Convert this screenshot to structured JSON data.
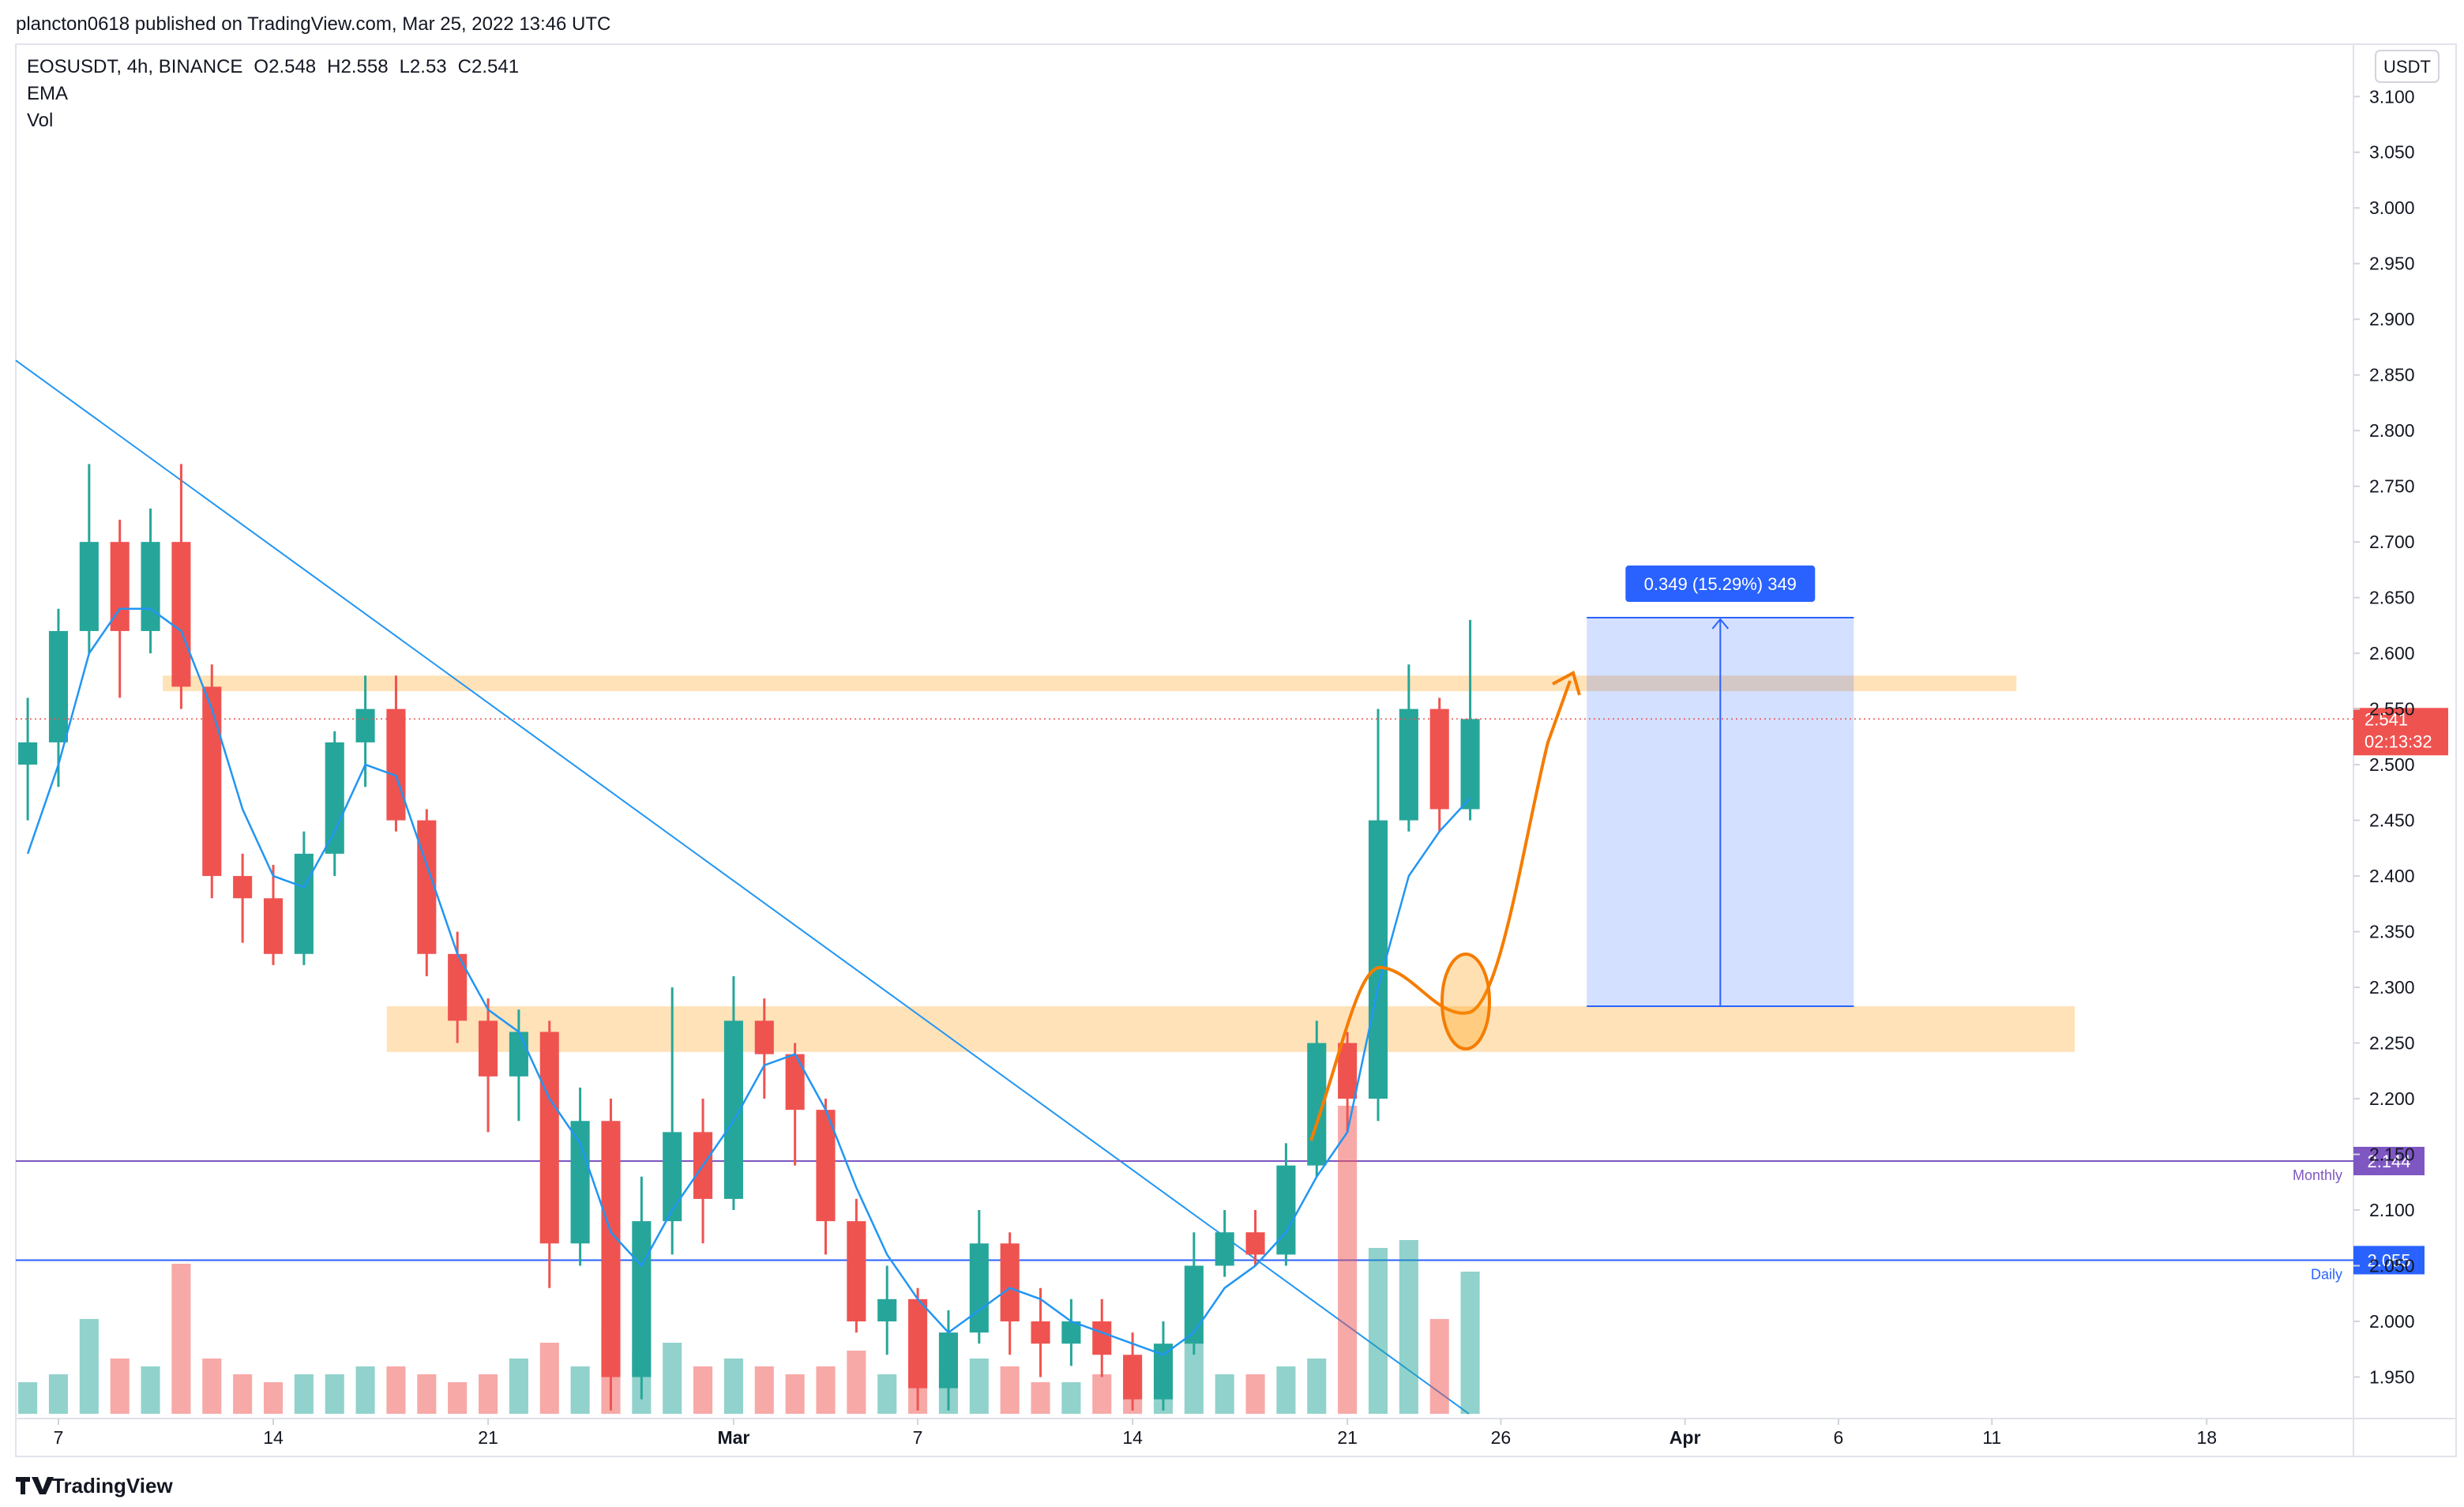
{
  "header": {
    "publisher": "plancton0618 published on TradingView.com, Mar 25, 2022 13:46 UTC"
  },
  "footer": {
    "brand": "TradingView"
  },
  "chart_data": {
    "type": "candlestick",
    "symbol": "EOSUSDT, 4h, BINANCE",
    "ohlc": [
      {
        "label": "O",
        "value": 2.548
      },
      {
        "label": "H",
        "value": 2.558
      },
      {
        "label": "L",
        "value": 2.53
      },
      {
        "label": "C",
        "value": 2.541
      }
    ],
    "currency": "USDT",
    "countdown": "02:13:32",
    "x": [
      5,
      6,
      7,
      8,
      9,
      10,
      11,
      12,
      13,
      14,
      15,
      16,
      17,
      18,
      19,
      20,
      21,
      22,
      23,
      24,
      25,
      26,
      27,
      28,
      29,
      30,
      31,
      32,
      33,
      34,
      35,
      36,
      37,
      38,
      39,
      40,
      41,
      42,
      43,
      44,
      45,
      46,
      47,
      48,
      49,
      50,
      51,
      52
    ],
    "open": [
      2.5,
      2.52,
      2.62,
      2.7,
      2.62,
      2.7,
      2.57,
      2.4,
      2.38,
      2.33,
      2.42,
      2.52,
      2.55,
      2.45,
      2.33,
      2.27,
      2.22,
      2.26,
      2.07,
      2.18,
      1.95,
      2.09,
      2.17,
      2.11,
      2.27,
      2.24,
      2.19,
      2.09,
      2.0,
      2.02,
      1.94,
      1.99,
      2.07,
      2.0,
      1.98,
      2.0,
      1.97,
      1.93,
      1.98,
      2.05,
      2.08,
      2.06,
      2.14,
      2.25,
      2.2,
      2.45,
      2.55,
      2.46
    ],
    "high": [
      2.56,
      2.64,
      2.77,
      2.72,
      2.73,
      2.77,
      2.59,
      2.42,
      2.41,
      2.44,
      2.53,
      2.58,
      2.58,
      2.46,
      2.35,
      2.29,
      2.28,
      2.27,
      2.21,
      2.2,
      2.13,
      2.3,
      2.2,
      2.31,
      2.29,
      2.25,
      2.2,
      2.11,
      2.05,
      2.03,
      2.01,
      2.1,
      2.08,
      2.03,
      2.02,
      2.02,
      1.99,
      2.0,
      2.08,
      2.1,
      2.1,
      2.16,
      2.27,
      2.26,
      2.55,
      2.59,
      2.56,
      2.63
    ],
    "low": [
      2.45,
      2.48,
      2.6,
      2.56,
      2.6,
      2.55,
      2.38,
      2.34,
      2.32,
      2.32,
      2.4,
      2.48,
      2.44,
      2.31,
      2.25,
      2.17,
      2.18,
      2.03,
      2.05,
      1.92,
      1.93,
      2.06,
      2.07,
      2.1,
      2.2,
      2.14,
      2.06,
      1.99,
      1.97,
      1.92,
      1.92,
      1.98,
      1.97,
      1.95,
      1.96,
      1.95,
      1.92,
      1.92,
      1.97,
      2.04,
      2.05,
      2.05,
      2.13,
      2.17,
      2.18,
      2.44,
      2.44,
      2.45
    ],
    "close": [
      2.52,
      2.62,
      2.7,
      2.62,
      2.7,
      2.57,
      2.4,
      2.38,
      2.33,
      2.42,
      2.52,
      2.55,
      2.45,
      2.33,
      2.27,
      2.22,
      2.26,
      2.07,
      2.18,
      1.95,
      2.09,
      2.17,
      2.11,
      2.27,
      2.24,
      2.19,
      2.09,
      2.0,
      2.02,
      1.94,
      1.99,
      2.07,
      2.0,
      1.98,
      2.0,
      1.97,
      1.93,
      1.98,
      2.05,
      2.08,
      2.06,
      2.14,
      2.25,
      2.2,
      2.45,
      2.55,
      2.46,
      2.541
    ],
    "up_color": "#26a69a",
    "down_color": "#ef5350",
    "series": [
      {
        "name": "EMA",
        "color": "#2196f3",
        "values": [
          2.42,
          2.5,
          2.6,
          2.64,
          2.64,
          2.62,
          2.55,
          2.46,
          2.4,
          2.39,
          2.44,
          2.5,
          2.49,
          2.41,
          2.33,
          2.28,
          2.26,
          2.2,
          2.16,
          2.08,
          2.05,
          2.1,
          2.14,
          2.18,
          2.23,
          2.24,
          2.19,
          2.12,
          2.06,
          2.02,
          1.99,
          2.01,
          2.03,
          2.02,
          2.0,
          1.99,
          1.98,
          1.97,
          1.99,
          2.03,
          2.05,
          2.08,
          2.13,
          2.17,
          2.3,
          2.4,
          2.44,
          2.47
        ]
      }
    ],
    "volume": {
      "name": "Vol",
      "values": [
        20,
        25,
        60,
        35,
        30,
        95,
        35,
        25,
        20,
        25,
        25,
        30,
        30,
        25,
        20,
        25,
        35,
        45,
        30,
        55,
        40,
        45,
        30,
        35,
        30,
        25,
        30,
        40,
        25,
        35,
        25,
        35,
        30,
        20,
        20,
        25,
        30,
        25,
        45,
        25,
        25,
        30,
        35,
        195,
        105,
        110,
        60,
        90
      ]
    },
    "levels": [
      {
        "name": "Monthly",
        "value": 2.144,
        "color": "#7e57c2"
      },
      {
        "name": "Daily",
        "value": 2.055,
        "color": "#2962ff"
      }
    ],
    "zones": [
      {
        "x": [
          9.4,
          69.8
        ],
        "y": [
          2.566,
          2.58
        ]
      },
      {
        "x": [
          16.7,
          71.7
        ],
        "y": [
          2.242,
          2.283
        ]
      }
    ],
    "trendline": {
      "x": [
        4.611,
        51.96
      ],
      "y": [
        2.863,
        1.917
      ],
      "color": "#2196f3"
    },
    "measure": {
      "x": [
        55.8,
        64.5
      ],
      "y": [
        2.283,
        2.632
      ],
      "label": "0.349 (15.29%) 349"
    },
    "xlim": [
      4.611,
      80.78
    ],
    "ylim": [
      1.917,
      3.147
    ],
    "xticks": [
      {
        "value": 6,
        "label": "7"
      },
      {
        "value": 13,
        "label": "14"
      },
      {
        "value": 20,
        "label": "21"
      },
      {
        "value": 28,
        "label": "Mar"
      },
      {
        "value": 34,
        "label": "7"
      },
      {
        "value": 41,
        "label": "14"
      },
      {
        "value": 48,
        "label": "21"
      },
      {
        "value": 53,
        "label": "26"
      },
      {
        "value": 59,
        "label": "Apr"
      },
      {
        "value": 64,
        "label": "6"
      },
      {
        "value": 69,
        "label": "11"
      },
      {
        "value": 76,
        "label": "18"
      }
    ],
    "yticks": [
      {
        "value": 1.95,
        "label": "1.950"
      },
      {
        "value": 2.0,
        "label": "2.000"
      },
      {
        "value": 2.05,
        "label": "2.050"
      },
      {
        "value": 2.1,
        "label": "2.100"
      },
      {
        "value": 2.15,
        "label": "2.150"
      },
      {
        "value": 2.2,
        "label": "2.200"
      },
      {
        "value": 2.25,
        "label": "2.250"
      },
      {
        "value": 2.3,
        "label": "2.300"
      },
      {
        "value": 2.35,
        "label": "2.350"
      },
      {
        "value": 2.4,
        "label": "2.400"
      },
      {
        "value": 2.45,
        "label": "2.450"
      },
      {
        "value": 2.5,
        "label": "2.500"
      },
      {
        "value": 2.55,
        "label": "2.550"
      },
      {
        "value": 2.6,
        "label": "2.600"
      },
      {
        "value": 2.65,
        "label": "2.650"
      },
      {
        "value": 2.7,
        "label": "2.700"
      },
      {
        "value": 2.75,
        "label": "2.750"
      },
      {
        "value": 2.8,
        "label": "2.800"
      },
      {
        "value": 2.85,
        "label": "2.850"
      },
      {
        "value": 2.9,
        "label": "2.900"
      },
      {
        "value": 2.95,
        "label": "2.950"
      },
      {
        "value": 3.0,
        "label": "3.000"
      },
      {
        "value": 3.05,
        "label": "3.050"
      },
      {
        "value": 3.1,
        "label": "3.100"
      }
    ],
    "grid": false
  }
}
